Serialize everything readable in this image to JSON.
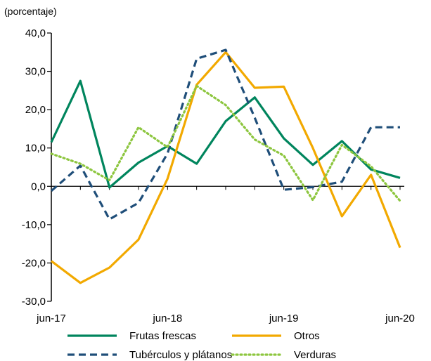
{
  "chart_data": {
    "type": "line",
    "unit_label": "(porcentaje)",
    "y_ticks": [
      "40,0",
      "30,0",
      "20,0",
      "10,0",
      "0,0",
      "-10,0",
      "-20,0",
      "-30,0"
    ],
    "y_tick_values": [
      40,
      30,
      20,
      10,
      0,
      -10,
      -20,
      -30
    ],
    "ylim": [
      -30,
      40
    ],
    "x_tick_labels": [
      "jun-17",
      "jun-18",
      "jun-19",
      "jun-20"
    ],
    "x_tick_positions": [
      0,
      4,
      8,
      12
    ],
    "xlim": [
      0,
      12
    ],
    "x": [
      0,
      1,
      2,
      3,
      4,
      5,
      6,
      7,
      8,
      9,
      10,
      11,
      12
    ],
    "series": [
      {
        "name": "Frutas frescas",
        "color": "#00855d",
        "dash": "solid",
        "values": [
          11.5,
          27.5,
          -0.3,
          6.2,
          10.5,
          5.9,
          17.0,
          23.2,
          12.5,
          5.6,
          11.8,
          4.4,
          2.2
        ]
      },
      {
        "name": "Otros",
        "color": "#f2a900",
        "dash": "solid",
        "values": [
          -19.5,
          -25.2,
          -21.2,
          -13.9,
          2.0,
          26.5,
          35.0,
          25.7,
          26.0,
          10.0,
          -7.8,
          3.0,
          -16.0
        ]
      },
      {
        "name": "Tubérculos y plátanos",
        "color": "#1f4e79",
        "dash": "dash",
        "values": [
          -1.2,
          5.4,
          -8.6,
          -4.3,
          8.6,
          33.3,
          35.6,
          17.9,
          -0.9,
          -0.2,
          1.2,
          15.4,
          15.4
        ]
      },
      {
        "name": "Verduras",
        "color": "#8dc63f",
        "dash": "dot",
        "values": [
          8.5,
          5.9,
          1.6,
          15.4,
          10.2,
          26.2,
          21.2,
          12.2,
          8.0,
          -3.6,
          10.8,
          5.2,
          -3.8
        ]
      }
    ]
  }
}
